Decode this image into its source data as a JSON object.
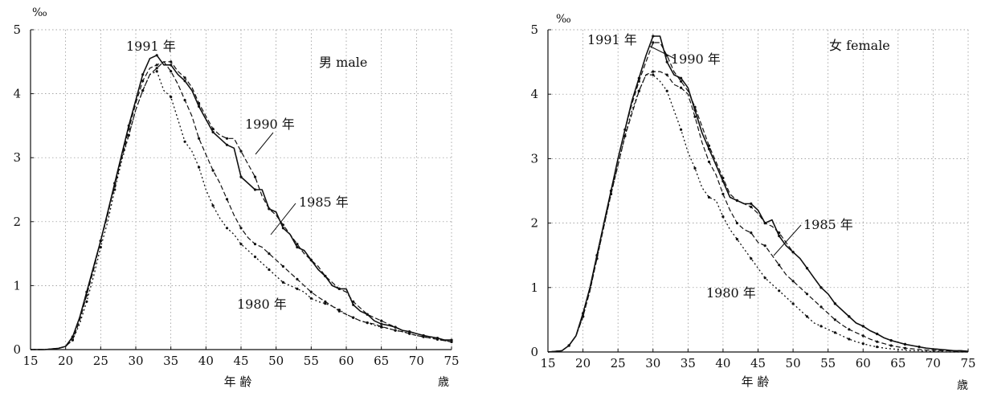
{
  "chart_data": [
    {
      "type": "line",
      "panel": "male",
      "title": "男 male",
      "y_unit": "‰",
      "xlabel": "年 齢",
      "x_unit": "歳",
      "xlim": [
        15,
        75
      ],
      "ylim": [
        0,
        5
      ],
      "x_ticks": [
        "15",
        "20",
        "25",
        "30",
        "35",
        "40",
        "45",
        "50",
        "55",
        "60",
        "65",
        "70",
        "75"
      ],
      "y_ticks": [
        "0",
        "1",
        "2",
        "3",
        "4",
        "5"
      ],
      "grid": true,
      "x": [
        15,
        17,
        19,
        20,
        21,
        22,
        23,
        24,
        25,
        26,
        27,
        28,
        29,
        30,
        31,
        32,
        33,
        34,
        35,
        36,
        37,
        38,
        39,
        40,
        41,
        42,
        43,
        44,
        45,
        46,
        47,
        48,
        49,
        50,
        51,
        52,
        53,
        54,
        55,
        56,
        57,
        58,
        59,
        60,
        61,
        62,
        63,
        64,
        65,
        66,
        67,
        68,
        69,
        70,
        71,
        72,
        73,
        74,
        75
      ],
      "series": [
        {
          "name": "1991 年",
          "style": "solid",
          "values": [
            0,
            0,
            0.02,
            0.05,
            0.2,
            0.5,
            0.9,
            1.3,
            1.7,
            2.15,
            2.6,
            3.05,
            3.5,
            3.9,
            4.3,
            4.55,
            4.6,
            4.45,
            4.45,
            4.3,
            4.2,
            4.05,
            3.8,
            3.6,
            3.4,
            3.3,
            3.2,
            3.15,
            2.7,
            2.6,
            2.5,
            2.5,
            2.2,
            2.15,
            1.9,
            1.8,
            1.6,
            1.55,
            1.4,
            1.25,
            1.15,
            1.0,
            0.95,
            0.95,
            0.7,
            0.6,
            0.55,
            0.45,
            0.4,
            0.38,
            0.35,
            0.3,
            0.28,
            0.25,
            0.22,
            0.2,
            0.18,
            0.15,
            0.15
          ]
        },
        {
          "name": "1990 年",
          "style": "dashed",
          "values": [
            0,
            0,
            0.02,
            0.05,
            0.2,
            0.5,
            0.85,
            1.25,
            1.7,
            2.15,
            2.55,
            3.0,
            3.45,
            3.85,
            4.2,
            4.4,
            4.45,
            4.5,
            4.5,
            4.35,
            4.25,
            4.1,
            3.85,
            3.65,
            3.45,
            3.35,
            3.3,
            3.3,
            3.1,
            2.9,
            2.7,
            2.4,
            2.2,
            2.1,
            1.95,
            1.8,
            1.65,
            1.5,
            1.4,
            1.3,
            1.15,
            1.05,
            0.95,
            0.9,
            0.75,
            0.65,
            0.55,
            0.5,
            0.45,
            0.4,
            0.35,
            0.3,
            0.28,
            0.25,
            0.22,
            0.2,
            0.18,
            0.15,
            0.15
          ]
        },
        {
          "name": "1985 年",
          "style": "dashed",
          "values": [
            0,
            0,
            0.02,
            0.05,
            0.15,
            0.45,
            0.85,
            1.3,
            1.7,
            2.1,
            2.6,
            3.0,
            3.35,
            3.75,
            4.05,
            4.3,
            4.4,
            4.5,
            4.35,
            4.15,
            3.9,
            3.65,
            3.3,
            3.05,
            2.8,
            2.6,
            2.35,
            2.1,
            1.9,
            1.75,
            1.65,
            1.6,
            1.5,
            1.4,
            1.3,
            1.2,
            1.1,
            1.0,
            0.9,
            0.82,
            0.75,
            0.68,
            0.6,
            0.55,
            0.5,
            0.45,
            0.42,
            0.4,
            0.36,
            0.33,
            0.3,
            0.28,
            0.25,
            0.22,
            0.2,
            0.18,
            0.16,
            0.14,
            0.12
          ]
        },
        {
          "name": "1980 年",
          "style": "dotted",
          "values": [
            0,
            0,
            0.02,
            0.05,
            0.15,
            0.4,
            0.75,
            1.15,
            1.6,
            2.0,
            2.5,
            2.95,
            3.35,
            3.75,
            4.05,
            4.3,
            4.35,
            4.05,
            3.95,
            3.6,
            3.25,
            3.1,
            2.85,
            2.5,
            2.25,
            2.05,
            1.9,
            1.8,
            1.65,
            1.55,
            1.45,
            1.35,
            1.25,
            1.15,
            1.05,
            1.0,
            0.95,
            0.9,
            0.8,
            0.75,
            0.72,
            0.68,
            0.62,
            0.55,
            0.5,
            0.45,
            0.42,
            0.38,
            0.35,
            0.33,
            0.3,
            0.28,
            0.25,
            0.22,
            0.2,
            0.18,
            0.16,
            0.14,
            0.12
          ]
        }
      ]
    },
    {
      "type": "line",
      "panel": "female",
      "title": "女 female",
      "y_unit": "‰",
      "xlabel": "年 齢",
      "x_unit": "歳",
      "xlim": [
        15,
        75
      ],
      "ylim": [
        0,
        5
      ],
      "x_ticks": [
        "15",
        "20",
        "25",
        "30",
        "35",
        "40",
        "45",
        "50",
        "55",
        "60",
        "65",
        "70",
        "75"
      ],
      "y_ticks": [
        "0",
        "1",
        "2",
        "3",
        "4",
        "5"
      ],
      "grid": true,
      "x": [
        15,
        17,
        18,
        19,
        20,
        21,
        22,
        23,
        24,
        25,
        26,
        27,
        28,
        29,
        30,
        31,
        32,
        33,
        34,
        35,
        36,
        37,
        38,
        39,
        40,
        41,
        42,
        43,
        44,
        45,
        46,
        47,
        48,
        49,
        50,
        51,
        52,
        53,
        54,
        55,
        56,
        57,
        58,
        59,
        60,
        61,
        62,
        63,
        64,
        65,
        66,
        67,
        68,
        69,
        70,
        71,
        72,
        73,
        74,
        75
      ],
      "series": [
        {
          "name": "1991 年",
          "style": "solid",
          "values": [
            0,
            0.02,
            0.1,
            0.25,
            0.6,
            1.0,
            1.5,
            2.0,
            2.5,
            3.0,
            3.45,
            3.9,
            4.25,
            4.6,
            4.9,
            4.9,
            4.5,
            4.3,
            4.25,
            4.1,
            3.75,
            3.4,
            3.15,
            2.9,
            2.65,
            2.4,
            2.35,
            2.3,
            2.3,
            2.2,
            2.0,
            2.05,
            1.8,
            1.65,
            1.55,
            1.45,
            1.3,
            1.15,
            1.0,
            0.9,
            0.75,
            0.65,
            0.55,
            0.45,
            0.4,
            0.33,
            0.28,
            0.22,
            0.18,
            0.15,
            0.12,
            0.1,
            0.08,
            0.06,
            0.05,
            0.04,
            0.03,
            0.02,
            0.02,
            0.01
          ]
        },
        {
          "name": "1990 年",
          "style": "dashed",
          "values": [
            0,
            0.02,
            0.1,
            0.25,
            0.55,
            1.0,
            1.5,
            2.0,
            2.5,
            3.0,
            3.45,
            3.85,
            4.2,
            4.5,
            4.8,
            4.8,
            4.6,
            4.35,
            4.2,
            4.05,
            3.8,
            3.5,
            3.2,
            2.95,
            2.7,
            2.45,
            2.35,
            2.3,
            2.25,
            2.15,
            2.0,
            1.95,
            1.85,
            1.7,
            1.55,
            1.45,
            1.3,
            1.15,
            1.0,
            0.9,
            0.75,
            0.65,
            0.55,
            0.45,
            0.4,
            0.33,
            0.28,
            0.22,
            0.18,
            0.15,
            0.12,
            0.1,
            0.08,
            0.06,
            0.05,
            0.04,
            0.03,
            0.02,
            0.02,
            0.01
          ]
        },
        {
          "name": "1985 年",
          "style": "dashed",
          "values": [
            0,
            0.02,
            0.1,
            0.25,
            0.55,
            0.95,
            1.45,
            1.95,
            2.45,
            2.9,
            3.35,
            3.7,
            4.05,
            4.3,
            4.35,
            4.35,
            4.3,
            4.15,
            4.1,
            4.0,
            3.65,
            3.25,
            2.95,
            2.75,
            2.45,
            2.2,
            2.0,
            1.9,
            1.85,
            1.7,
            1.65,
            1.5,
            1.35,
            1.2,
            1.1,
            1.0,
            0.9,
            0.8,
            0.7,
            0.6,
            0.5,
            0.42,
            0.35,
            0.3,
            0.25,
            0.2,
            0.16,
            0.13,
            0.1,
            0.08,
            0.06,
            0.05,
            0.04,
            0.03,
            0.03,
            0.02,
            0.02,
            0.01,
            0.01,
            0.01
          ]
        },
        {
          "name": "1980 年",
          "style": "dotted",
          "values": [
            0,
            0.02,
            0.1,
            0.25,
            0.55,
            0.95,
            1.45,
            1.95,
            2.45,
            2.9,
            3.35,
            3.75,
            4.05,
            4.3,
            4.3,
            4.2,
            4.05,
            3.75,
            3.45,
            3.1,
            2.85,
            2.55,
            2.4,
            2.35,
            2.1,
            1.9,
            1.75,
            1.6,
            1.45,
            1.3,
            1.15,
            1.05,
            0.95,
            0.85,
            0.75,
            0.65,
            0.55,
            0.45,
            0.4,
            0.35,
            0.3,
            0.25,
            0.2,
            0.16,
            0.13,
            0.1,
            0.08,
            0.06,
            0.05,
            0.04,
            0.03,
            0.02,
            0.02,
            0.01,
            0.01,
            0.01,
            0.0,
            0.0,
            0.0,
            0.0
          ]
        }
      ]
    }
  ]
}
